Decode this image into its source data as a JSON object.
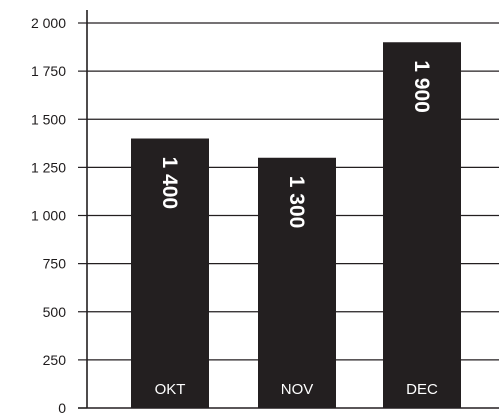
{
  "chart_data": {
    "type": "bar",
    "categories": [
      "OKT",
      "NOV",
      "DEC"
    ],
    "values": [
      1400,
      1300,
      1900
    ],
    "value_labels": [
      "1 400",
      "1 300",
      "1 900"
    ],
    "yticks": [
      0,
      250,
      500,
      750,
      1000,
      1250,
      1500,
      1750,
      2000
    ],
    "ytick_labels": [
      "0",
      "250",
      "500",
      "750",
      "1 000",
      "1 250",
      "1 500",
      "1 750",
      "2 000"
    ],
    "ylim": [
      0,
      2000
    ],
    "grid": true,
    "title": "",
    "xlabel": "",
    "ylabel": "",
    "colors": {
      "bar": "#231f20",
      "axis": "#231f20",
      "grid": "#231f20",
      "label_on_bar": "#ffffff"
    }
  }
}
